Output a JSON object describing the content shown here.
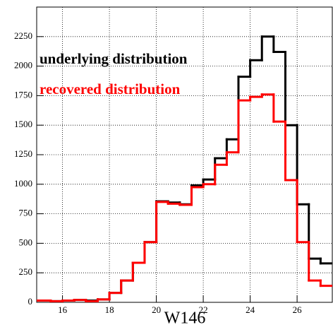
{
  "chart_data": {
    "type": "histogram",
    "x_label": "W146",
    "bins": [
      14.5,
      15,
      15.5,
      16,
      16.5,
      17,
      17.5,
      18,
      18.5,
      19,
      19.5,
      20,
      20.5,
      21,
      21.5,
      22,
      22.5,
      23,
      23.5,
      24,
      24.5,
      25,
      25.5,
      26,
      26.5,
      27,
      27.5
    ],
    "series": [
      {
        "name": "underlying distribution",
        "color": "#000000",
        "values": [
          15,
          15,
          10,
          15,
          20,
          15,
          25,
          80,
          185,
          335,
          510,
          855,
          845,
          830,
          990,
          1040,
          1220,
          1380,
          1910,
          2050,
          2250,
          2120,
          1500,
          830,
          370,
          330
        ]
      },
      {
        "name": "recovered distribution",
        "color": "#ff0000",
        "values": [
          15,
          15,
          10,
          15,
          20,
          10,
          25,
          80,
          185,
          335,
          510,
          850,
          835,
          825,
          975,
          1000,
          1165,
          1270,
          1710,
          1740,
          1760,
          1530,
          1035,
          510,
          185,
          140
        ]
      }
    ],
    "xlim": [
      14.9,
      27.5
    ],
    "ylim": [
      0,
      2500
    ],
    "xticks": [
      16,
      18,
      20,
      22,
      24,
      26
    ],
    "yticks": [
      0,
      250,
      500,
      750,
      1000,
      1250,
      1500,
      1750,
      2000,
      2250
    ],
    "grid": true
  }
}
